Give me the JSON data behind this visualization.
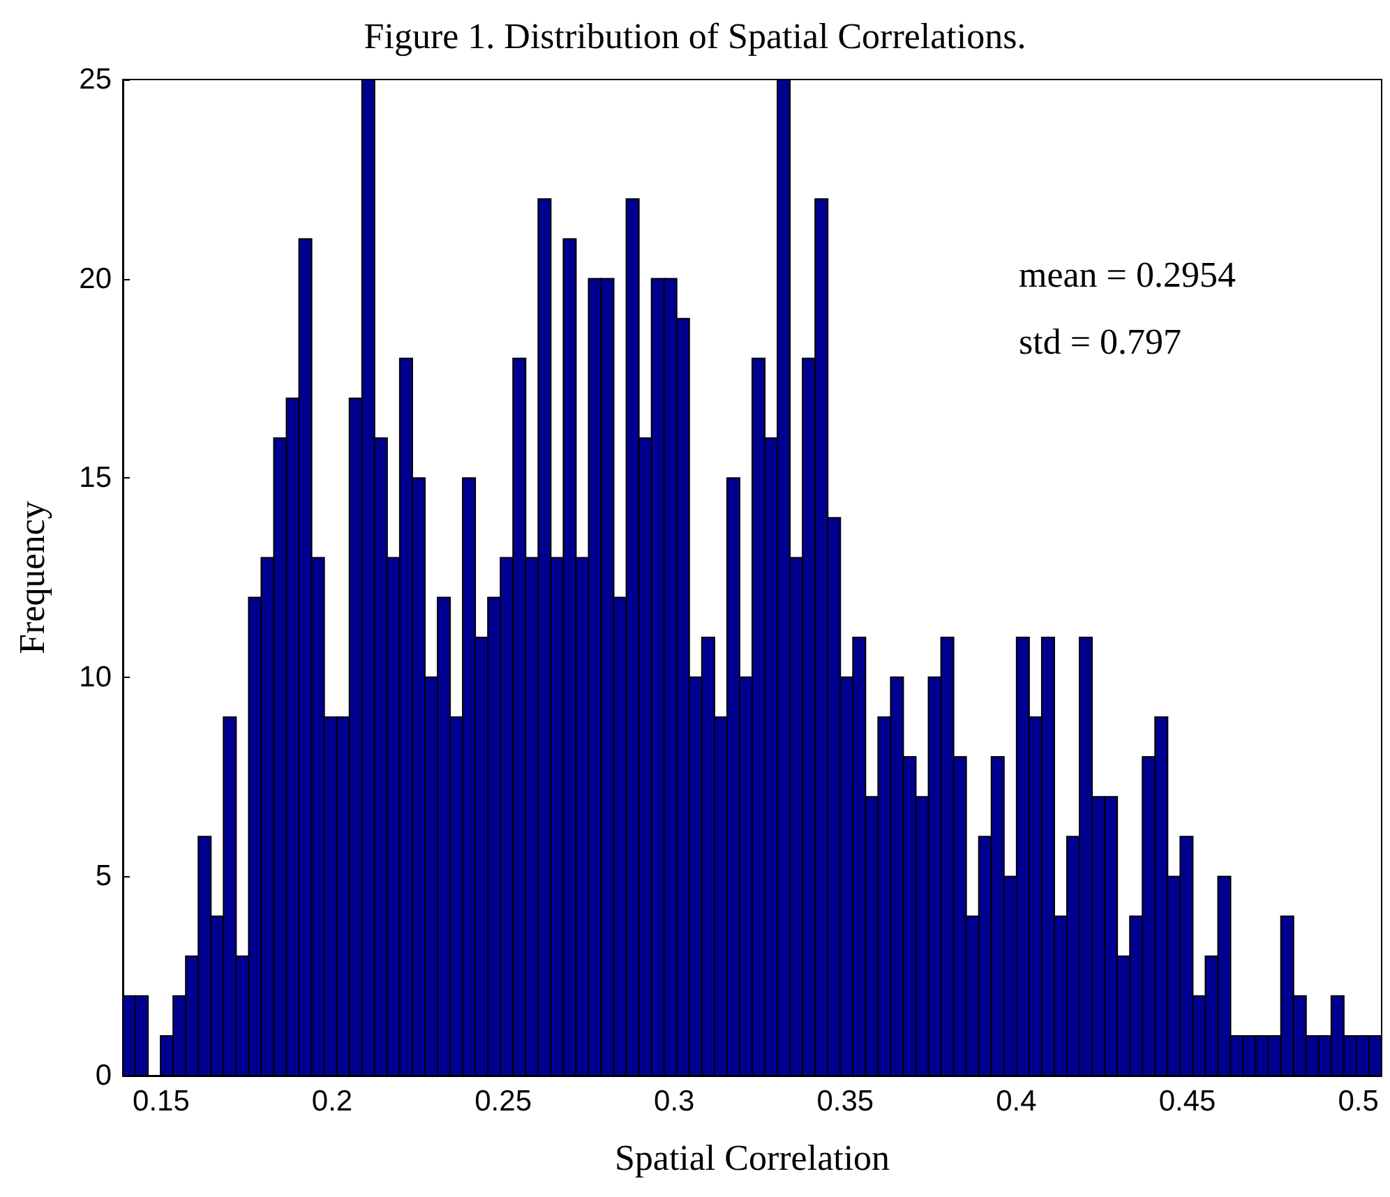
{
  "chart_data": {
    "type": "histogram",
    "title": "Figure 1. Distribution of Spatial Correlations.",
    "xlabel": "Spatial Correlation",
    "ylabel": "Frequency",
    "bins": [
      0.1388,
      0.14248,
      0.14616,
      0.14984,
      0.15352,
      0.1572,
      0.16088,
      0.16456,
      0.16824,
      0.17192,
      0.1756,
      0.17928,
      0.18296,
      0.18664,
      0.19032,
      0.194,
      0.19768,
      0.20136,
      0.20504,
      0.20872,
      0.2124,
      0.21608,
      0.21976,
      0.22344,
      0.22712,
      0.2308,
      0.23448,
      0.23816,
      0.24184,
      0.24552,
      0.2492,
      0.25288,
      0.25656,
      0.26024,
      0.26392,
      0.2676,
      0.27128,
      0.27496,
      0.27864,
      0.28232,
      0.286,
      0.28968,
      0.29336,
      0.29704,
      0.30072,
      0.3044,
      0.30808,
      0.31176,
      0.31544,
      0.31912,
      0.3228,
      0.32648,
      0.33016,
      0.33384,
      0.33752,
      0.3412,
      0.34488,
      0.34856,
      0.35224,
      0.35592,
      0.3596,
      0.36328,
      0.36696,
      0.37064,
      0.37432,
      0.378,
      0.38168,
      0.38536,
      0.38904,
      0.39272,
      0.3964,
      0.40008,
      0.40376,
      0.40744,
      0.41112,
      0.4148,
      0.41848,
      0.42216,
      0.42584,
      0.42952,
      0.4332,
      0.43688,
      0.44056,
      0.44424,
      0.44792,
      0.4516,
      0.45528,
      0.45896,
      0.46264,
      0.46632,
      0.47,
      0.47368,
      0.47736,
      0.48104,
      0.48472,
      0.4884,
      0.49208,
      0.49576,
      0.49944,
      0.50312,
      0.5068
    ],
    "values": [
      2,
      2,
      0,
      1,
      2,
      3,
      6,
      4,
      9,
      3,
      12,
      13,
      16,
      17,
      21,
      13,
      9,
      9,
      17,
      25,
      16,
      13,
      18,
      15,
      10,
      12,
      9,
      15,
      11,
      12,
      13,
      18,
      13,
      22,
      13,
      21,
      13,
      20,
      20,
      12,
      22,
      16,
      20,
      20,
      19,
      10,
      11,
      9,
      15,
      10,
      18,
      16,
      25,
      13,
      18,
      22,
      14,
      10,
      11,
      7,
      9,
      10,
      8,
      7,
      10,
      11,
      8,
      4,
      6,
      8,
      5,
      11,
      9,
      11,
      4,
      6,
      11,
      7,
      7,
      3,
      4,
      8,
      9,
      5,
      6,
      2,
      3,
      5,
      1,
      1,
      1,
      1,
      4,
      2,
      1,
      1,
      2,
      1,
      1,
      1
    ],
    "color": "#000090",
    "xlim": [
      0.1388,
      0.5068
    ],
    "xticks": [
      0.15,
      0.2,
      0.25,
      0.3,
      0.35,
      0.4,
      0.45,
      0.5
    ],
    "ylim": [
      0,
      25
    ],
    "yticks": [
      0,
      5,
      10,
      15,
      20,
      25
    ],
    "grid": false,
    "annotations": [
      "mean = 0.2954",
      "std = 0.797"
    ]
  }
}
